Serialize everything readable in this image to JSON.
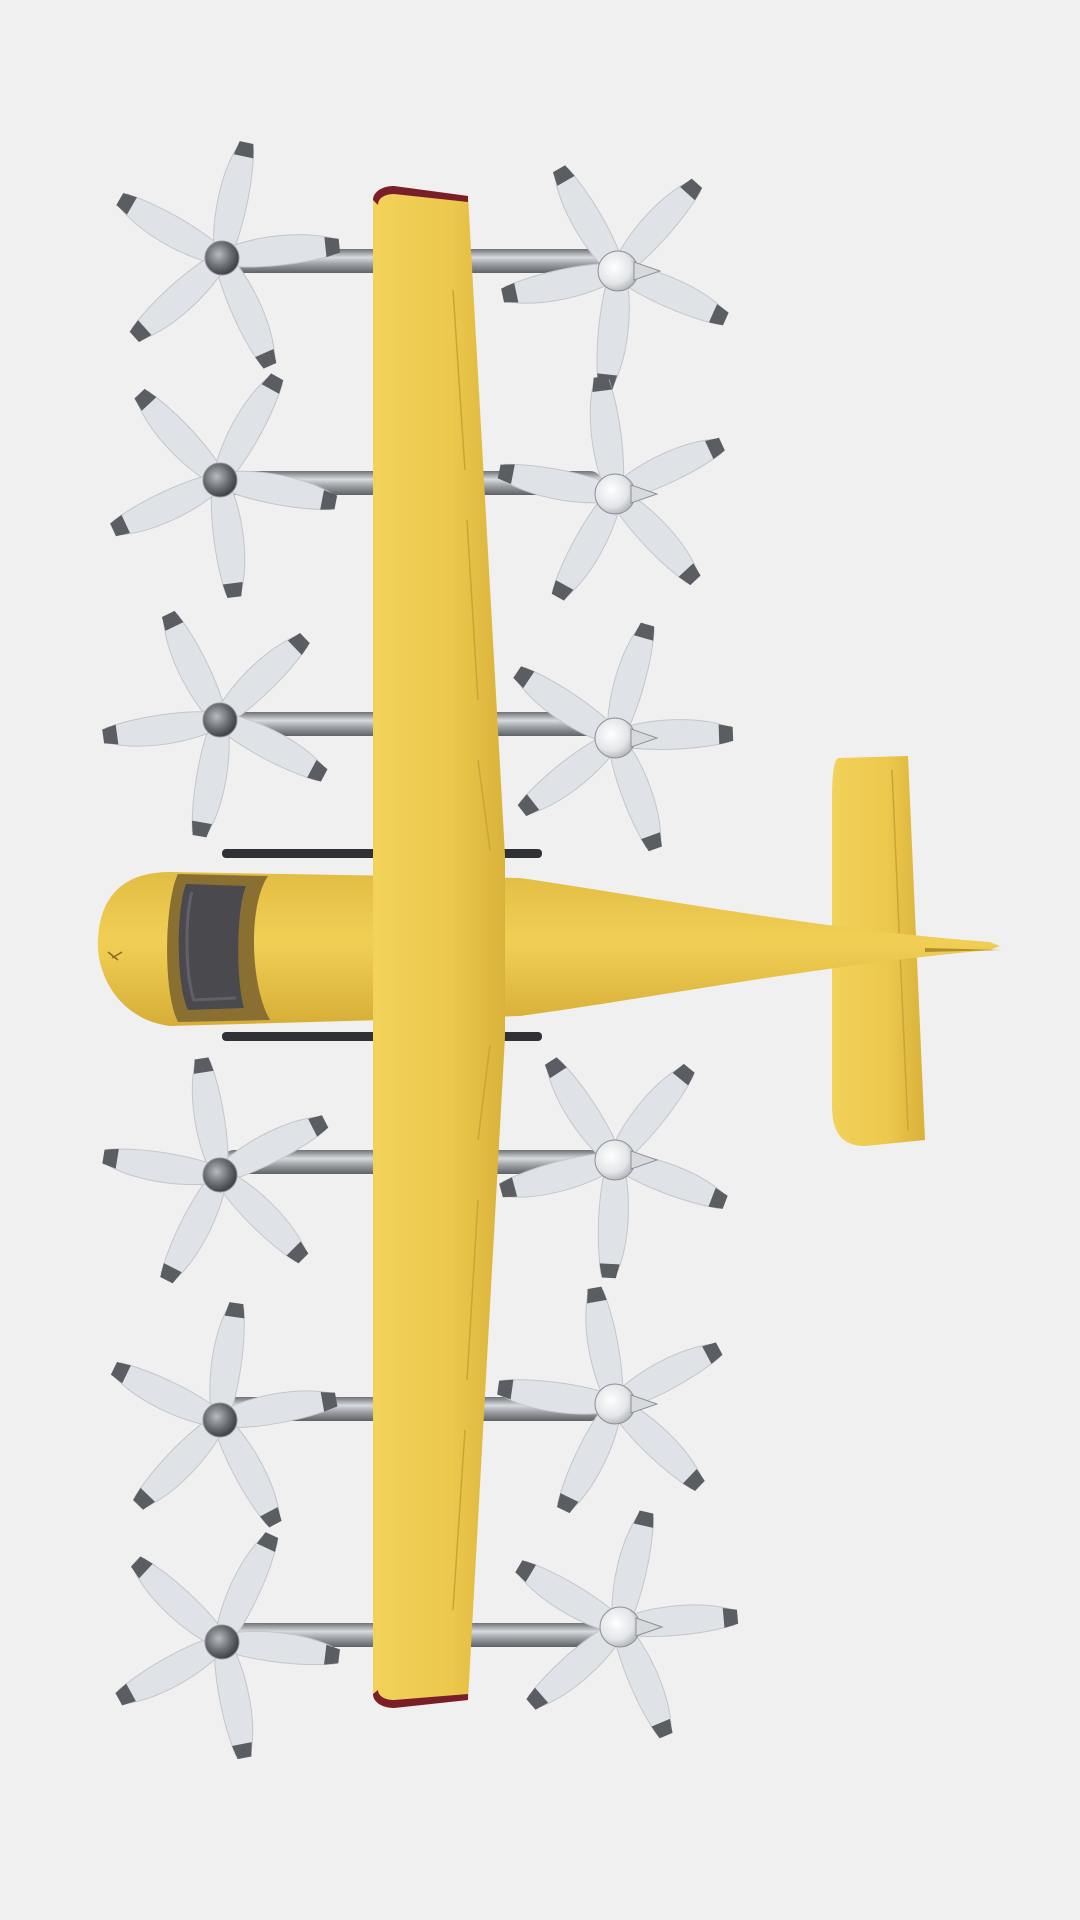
{
  "scene": {
    "subject": "aircraft",
    "view": "top-down",
    "rotor_count": 12,
    "rotor_blade_count": 5,
    "colors": {
      "background": "#f0f0f0",
      "body": "#ecc84c",
      "body_shade": "#d9b23a",
      "canopy": "#4a4a4e",
      "wingtip": "#7a1f2a",
      "boom": "#a2a6ab",
      "blade": "#dfe2e6",
      "blade_tip": "#5a5d61"
    }
  }
}
